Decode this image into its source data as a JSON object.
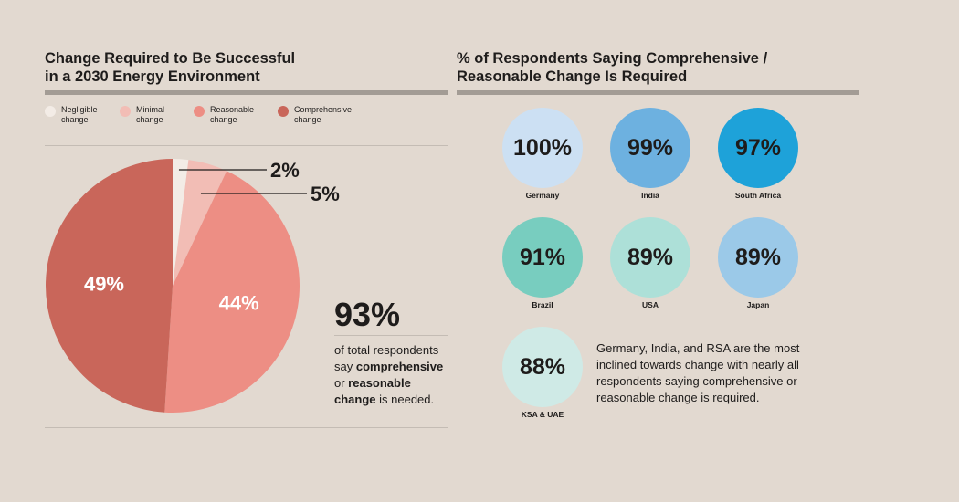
{
  "left_panel": {
    "title_lines": [
      "Change Required to Be Successful",
      "in a 2030 Energy Environment"
    ]
  },
  "right_panel": {
    "title_lines": [
      "% of Respondents Saying Comprehensive /",
      "Reasonable Change Is Required"
    ]
  },
  "colors": {
    "background": "#e2d9d0",
    "negligible": "#f3ece6",
    "minimal": "#f2bdb5",
    "reasonable": "#ed8e84",
    "comprehensive": "#c9665a"
  },
  "summary": {
    "big_value": "93%",
    "text_lines": [
      {
        "pre": "of total respondents",
        "bold": "",
        "post": ""
      },
      {
        "pre": "say ",
        "bold": "comprehensive",
        "post": ""
      },
      {
        "pre": "or ",
        "bold": "reasonable",
        "post": ""
      },
      {
        "pre": "",
        "bold": "change",
        "post": " is needed."
      }
    ]
  },
  "note_lines": [
    "Germany, India, and RSA are the most",
    "inclined towards change with nearly all",
    "respondents saying comprehensive or",
    "reasonable change is required."
  ],
  "chart_data": [
    {
      "type": "pie",
      "legend_position": "top",
      "slices": [
        {
          "label_lines": [
            "Negligible",
            "change"
          ],
          "value": 2,
          "display": "2%",
          "color": "#f3ece6"
        },
        {
          "label_lines": [
            "Minimal",
            "change"
          ],
          "value": 5,
          "display": "5%",
          "color": "#f2bdb5"
        },
        {
          "label_lines": [
            "Reasonable",
            "change"
          ],
          "value": 44,
          "display": "44%",
          "color": "#ed8e84"
        },
        {
          "label_lines": [
            "Comprehensive",
            "change"
          ],
          "value": 49,
          "display": "49%",
          "color": "#c9665a"
        }
      ]
    },
    {
      "type": "bubble",
      "items": [
        {
          "country": "Germany",
          "value": 100,
          "display": "100%",
          "color": "#cce0f3"
        },
        {
          "country": "India",
          "value": 99,
          "display": "99%",
          "color": "#6db1e0"
        },
        {
          "country": "South Africa",
          "value": 97,
          "display": "97%",
          "color": "#1ea2d9"
        },
        {
          "country": "Brazil",
          "value": 91,
          "display": "91%",
          "color": "#78cdbf"
        },
        {
          "country": "USA",
          "value": 89,
          "display": "89%",
          "color": "#ade0d8"
        },
        {
          "country": "Japan",
          "value": 89,
          "display": "89%",
          "color": "#9bc9e8"
        },
        {
          "country": "KSA & UAE",
          "value": 88,
          "display": "88%",
          "color": "#cfeae6"
        }
      ]
    }
  ]
}
